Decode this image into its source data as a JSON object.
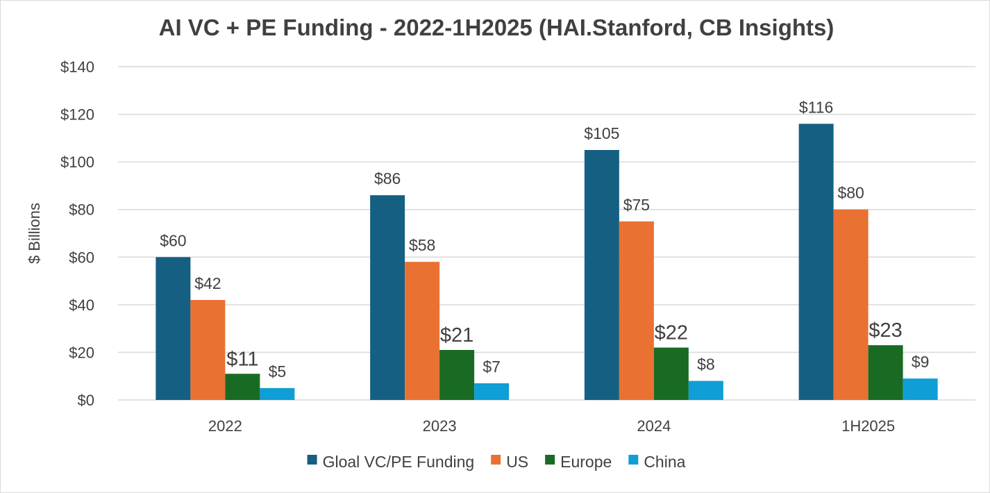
{
  "chart_data": {
    "type": "bar",
    "title": "AI VC + PE Funding - 2022-1H2025 (HAI.Stanford, CB Insights)",
    "xlabel": "",
    "ylabel": "$ Billions",
    "ylim": [
      0,
      140
    ],
    "yticks": [
      0,
      20,
      40,
      60,
      80,
      100,
      120,
      140
    ],
    "ytick_labels": [
      "$0",
      "$20",
      "$40",
      "$60",
      "$80",
      "$100",
      "$120",
      "$140"
    ],
    "grid": true,
    "legend_position": "bottom",
    "categories": [
      "2022",
      "2023",
      "2024",
      "1H2025"
    ],
    "series": [
      {
        "name": "Gloal VC/PE Funding",
        "color": "#156082",
        "values": [
          60,
          86,
          105,
          116
        ],
        "labels": [
          "$60",
          "$86",
          "$105",
          "$116"
        ]
      },
      {
        "name": "US",
        "color": "#E97132",
        "values": [
          42,
          58,
          75,
          80
        ],
        "labels": [
          "$42",
          "$58",
          "$75",
          "$80"
        ]
      },
      {
        "name": "Europe",
        "color": "#196B24",
        "values": [
          11,
          21,
          22,
          23
        ],
        "labels": [
          "$11",
          "$21",
          "$22",
          "$23"
        ]
      },
      {
        "name": "China",
        "color": "#0F9ED5",
        "values": [
          5,
          7,
          8,
          9
        ],
        "labels": [
          "$5",
          "$7",
          "$8",
          "$9"
        ]
      }
    ]
  }
}
